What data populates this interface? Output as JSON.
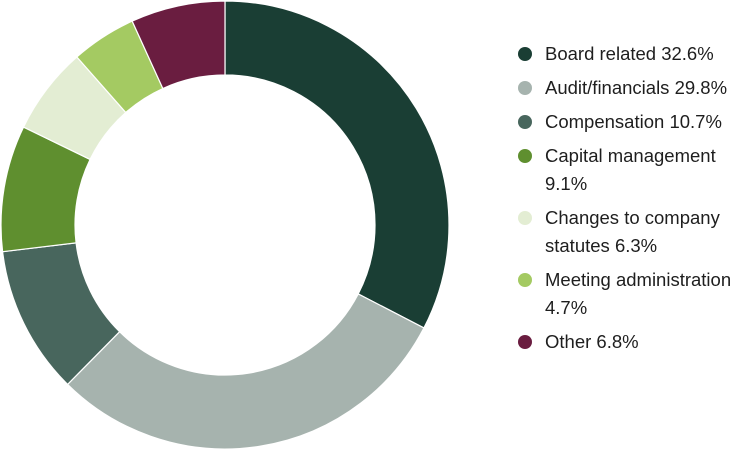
{
  "chart_data": {
    "type": "pie",
    "donut": true,
    "title": "",
    "legend_position": "right",
    "slices": [
      {
        "label": "Board related",
        "pct_label": "32.6%",
        "value": 32.6,
        "color": "#1a3e34"
      },
      {
        "label": "Audit/financials",
        "pct_label": "29.8%",
        "value": 29.8,
        "color": "#a6b3ae"
      },
      {
        "label": "Compensation",
        "pct_label": "10.7%",
        "value": 10.7,
        "color": "#48665d"
      },
      {
        "label": "Capital management",
        "pct_label": "9.1%",
        "value": 9.1,
        "color": "#5f8f2f"
      },
      {
        "label": "Changes to company statutes",
        "pct_label": "6.3%",
        "value": 6.3,
        "color": "#e3edd3"
      },
      {
        "label": "Meeting administration",
        "pct_label": "4.7%",
        "value": 4.7,
        "color": "#a4ca62"
      },
      {
        "label": "Other",
        "pct_label": "6.8%",
        "value": 6.8,
        "color": "#6a1d40"
      }
    ]
  }
}
